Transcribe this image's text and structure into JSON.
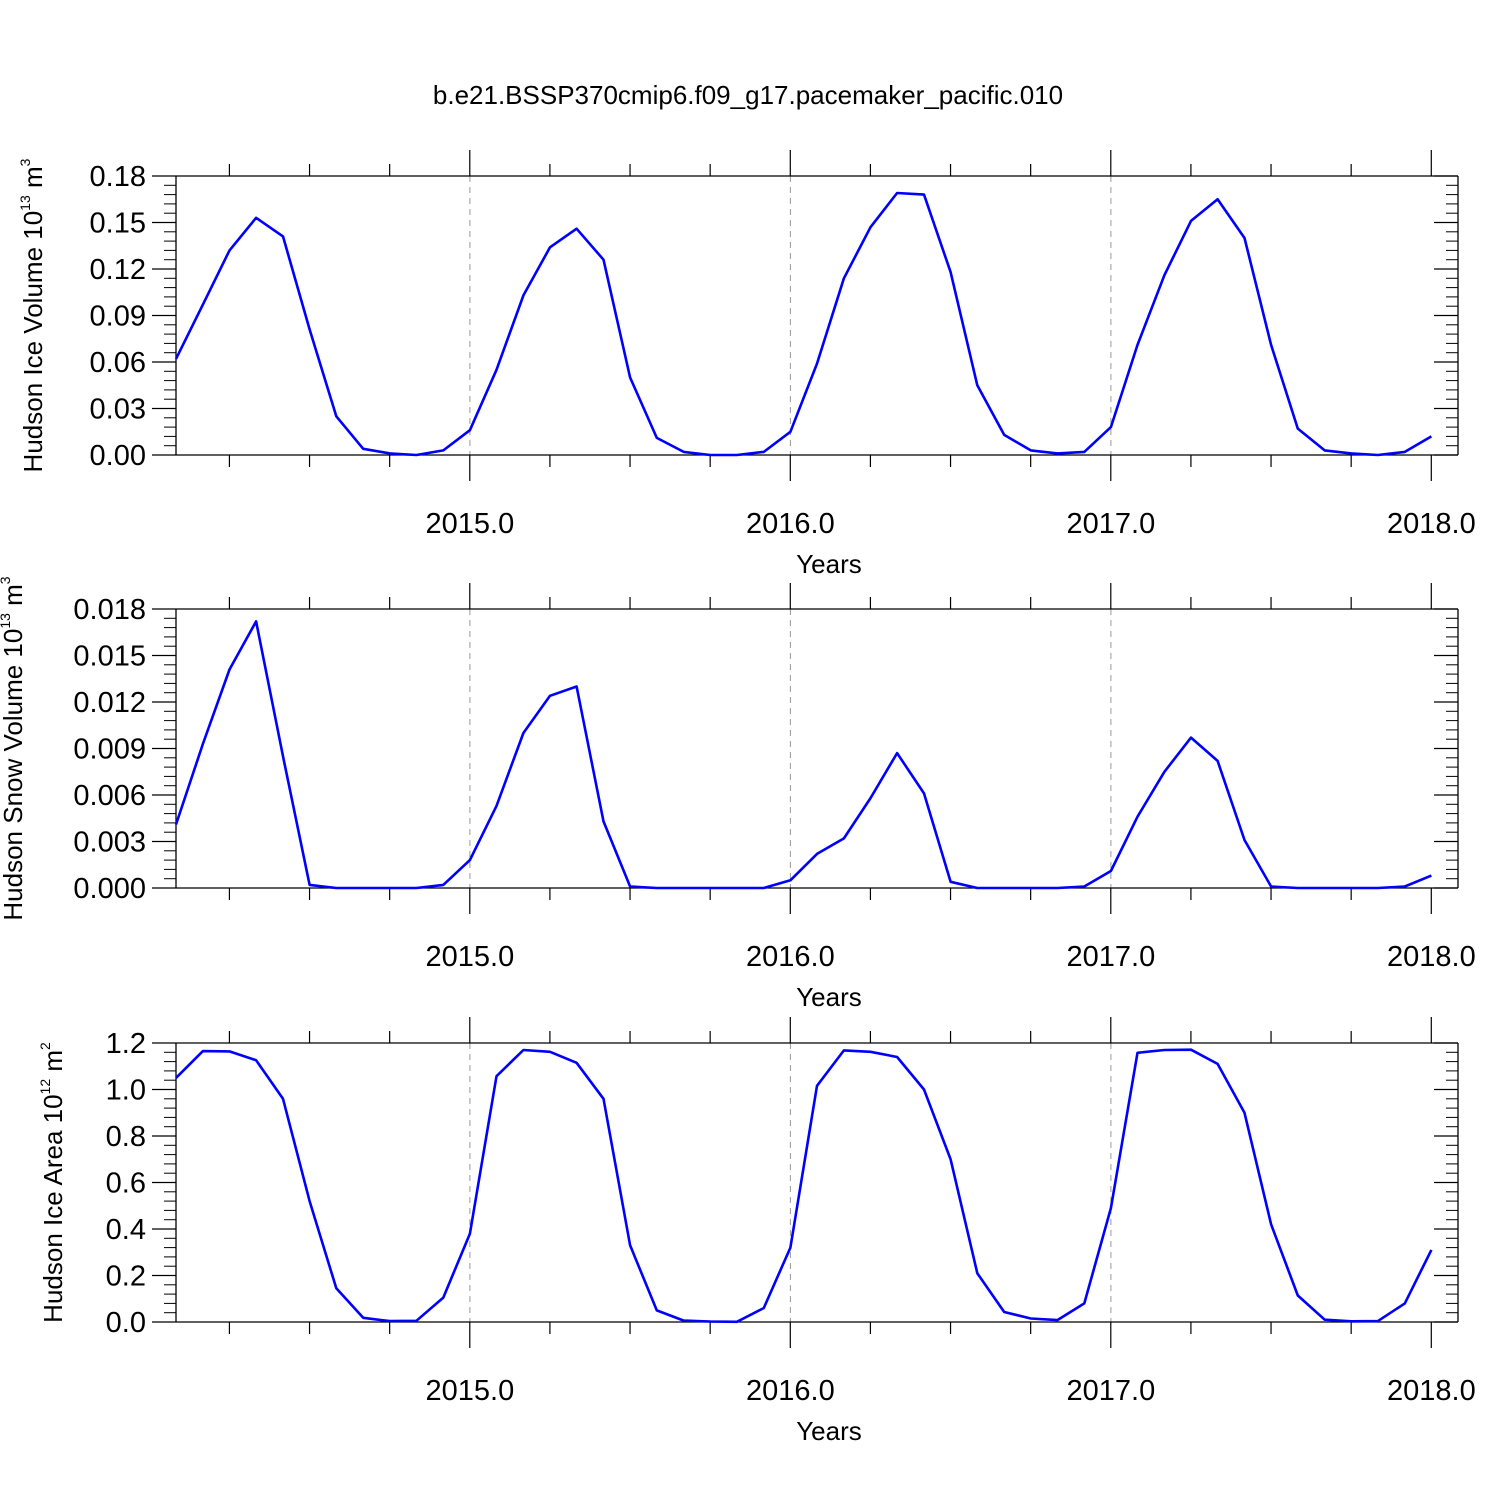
{
  "title": "b.e21.BSSP370cmip6.f09_g17.pacemaker_pacific.010",
  "chart_data": [
    {
      "type": "line",
      "ylabel": {
        "text": "Hudson Ice Volume 10",
        "exp": "13",
        "unit": " m",
        "unit_exp": "3"
      },
      "xlabel": "Years",
      "xlim": [
        2014.083,
        2018.083
      ],
      "ylim": [
        0,
        0.18
      ],
      "yticks": [
        "0.00",
        "0.03",
        "0.06",
        "0.09",
        "0.12",
        "0.15",
        "0.18"
      ],
      "xticks": [
        "2015.0",
        "2016.0",
        "2017.0",
        "2018.0"
      ],
      "line_color": "#0000ff",
      "x": [
        2014.083,
        2014.167,
        2014.25,
        2014.333,
        2014.417,
        2014.5,
        2014.583,
        2014.667,
        2014.75,
        2014.833,
        2014.917,
        2015.0,
        2015.083,
        2015.167,
        2015.25,
        2015.333,
        2015.417,
        2015.5,
        2015.583,
        2015.667,
        2015.75,
        2015.833,
        2015.917,
        2016.0,
        2016.083,
        2016.167,
        2016.25,
        2016.333,
        2016.417,
        2016.5,
        2016.583,
        2016.667,
        2016.75,
        2016.833,
        2016.917,
        2017.0,
        2017.083,
        2017.167,
        2017.25,
        2017.333,
        2017.417,
        2017.5,
        2017.583,
        2017.667,
        2017.75,
        2017.833,
        2017.917,
        2018.0
      ],
      "values": [
        0.062,
        0.097,
        0.132,
        0.153,
        0.141,
        0.081,
        0.025,
        0.004,
        0.001,
        0.0,
        0.003,
        0.016,
        0.055,
        0.103,
        0.134,
        0.146,
        0.126,
        0.05,
        0.011,
        0.002,
        0.0,
        0.0,
        0.002,
        0.015,
        0.059,
        0.114,
        0.147,
        0.169,
        0.168,
        0.118,
        0.045,
        0.013,
        0.003,
        0.001,
        0.002,
        0.018,
        0.071,
        0.116,
        0.151,
        0.165,
        0.14,
        0.071,
        0.017,
        0.003,
        0.001,
        0.0,
        0.002,
        0.012
      ]
    },
    {
      "type": "line",
      "ylabel": {
        "text": "Hudson Snow Volume 10",
        "exp": "13",
        "unit": " m",
        "unit_exp": "3"
      },
      "xlabel": "Years",
      "xlim": [
        2014.083,
        2018.083
      ],
      "ylim": [
        0,
        0.018
      ],
      "yticks": [
        "0.000",
        "0.003",
        "0.006",
        "0.009",
        "0.012",
        "0.015",
        "0.018"
      ],
      "xticks": [
        "2015.0",
        "2016.0",
        "2017.0",
        "2018.0"
      ],
      "line_color": "#0000ff",
      "x": [
        2014.083,
        2014.167,
        2014.25,
        2014.333,
        2014.417,
        2014.5,
        2014.583,
        2014.667,
        2014.75,
        2014.833,
        2014.917,
        2015.0,
        2015.083,
        2015.167,
        2015.25,
        2015.333,
        2015.417,
        2015.5,
        2015.583,
        2015.667,
        2015.75,
        2015.833,
        2015.917,
        2016.0,
        2016.083,
        2016.167,
        2016.25,
        2016.333,
        2016.417,
        2016.5,
        2016.583,
        2016.667,
        2016.75,
        2016.833,
        2016.917,
        2017.0,
        2017.083,
        2017.167,
        2017.25,
        2017.333,
        2017.417,
        2017.5,
        2017.583,
        2017.667,
        2017.75,
        2017.833,
        2017.917,
        2018.0
      ],
      "values": [
        0.0041,
        0.0093,
        0.0141,
        0.0172,
        0.0085,
        0.0002,
        0.0,
        0.0,
        0.0,
        0.0,
        0.0002,
        0.0018,
        0.0053,
        0.01,
        0.0124,
        0.013,
        0.0043,
        0.0001,
        0.0,
        0.0,
        0.0,
        0.0,
        0.0,
        0.0005,
        0.0022,
        0.0032,
        0.0058,
        0.0087,
        0.0061,
        0.0004,
        0.0,
        0.0,
        0.0,
        0.0,
        0.0001,
        0.0011,
        0.0046,
        0.0075,
        0.0097,
        0.0082,
        0.0031,
        0.0001,
        0.0,
        0.0,
        0.0,
        0.0,
        0.0001,
        0.0008
      ]
    },
    {
      "type": "line",
      "ylabel": {
        "text": "Hudson Ice Area 10",
        "exp": "12",
        "unit": " m",
        "unit_exp": "2"
      },
      "xlabel": "Years",
      "xlim": [
        2014.083,
        2018.083
      ],
      "ylim": [
        0,
        1.2
      ],
      "yticks": [
        "0.0",
        "0.2",
        "0.4",
        "0.6",
        "0.8",
        "1.0",
        "1.2"
      ],
      "xticks": [
        "2015.0",
        "2016.0",
        "2017.0",
        "2018.0"
      ],
      "line_color": "#0000ff",
      "x": [
        2014.083,
        2014.167,
        2014.25,
        2014.333,
        2014.417,
        2014.5,
        2014.583,
        2014.667,
        2014.75,
        2014.833,
        2014.917,
        2015.0,
        2015.083,
        2015.167,
        2015.25,
        2015.333,
        2015.417,
        2015.5,
        2015.583,
        2015.667,
        2015.75,
        2015.833,
        2015.917,
        2016.0,
        2016.083,
        2016.167,
        2016.25,
        2016.333,
        2016.417,
        2016.5,
        2016.583,
        2016.667,
        2016.75,
        2016.833,
        2016.917,
        2017.0,
        2017.083,
        2017.167,
        2017.25,
        2017.333,
        2017.417,
        2017.5,
        2017.583,
        2017.667,
        2017.75,
        2017.833,
        2017.917,
        2018.0
      ],
      "values": [
        1.05,
        1.165,
        1.164,
        1.126,
        0.96,
        0.52,
        0.145,
        0.018,
        0.004,
        0.005,
        0.105,
        0.38,
        1.057,
        1.17,
        1.162,
        1.115,
        0.96,
        0.33,
        0.05,
        0.006,
        0.002,
        0.001,
        0.06,
        0.32,
        1.016,
        1.168,
        1.162,
        1.14,
        1.0,
        0.7,
        0.21,
        0.043,
        0.015,
        0.008,
        0.08,
        0.49,
        1.158,
        1.17,
        1.171,
        1.11,
        0.9,
        0.42,
        0.114,
        0.01,
        0.003,
        0.004,
        0.08,
        0.31
      ]
    }
  ]
}
